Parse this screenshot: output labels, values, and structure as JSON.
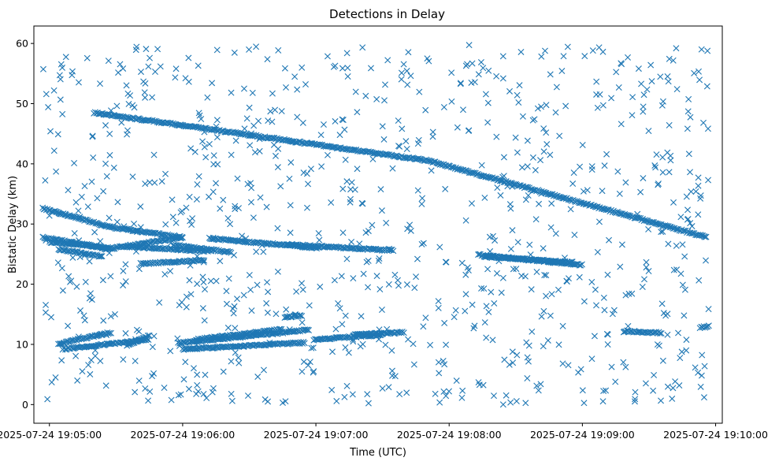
{
  "chart_data": {
    "type": "scatter",
    "title": "Detections in Delay",
    "xlabel": "Time (UTC)",
    "ylabel": "Bistatic Delay (km)",
    "x_time_start": "2025-07-24 19:04:53",
    "x_time_end": "2025-07-24 19:10:03",
    "xlim_seconds": [
      -7,
      303
    ],
    "ylim": [
      -3.1,
      62.9
    ],
    "x_ticks": [
      {
        "label": "2025-07-24 19:05:00",
        "t": 0
      },
      {
        "label": "2025-07-24 19:06:00",
        "t": 60
      },
      {
        "label": "2025-07-24 19:07:00",
        "t": 120
      },
      {
        "label": "2025-07-24 19:08:00",
        "t": 180
      },
      {
        "label": "2025-07-24 19:09:00",
        "t": 240
      },
      {
        "label": "2025-07-24 19:10:00",
        "t": 300
      }
    ],
    "y_ticks": [
      0,
      10,
      20,
      30,
      40,
      50,
      60
    ],
    "marker": "x",
    "color": "#1f77b4",
    "grid": false,
    "legend": "none",
    "tracks": [
      {
        "t_start": 20,
        "t_end": 171,
        "y_start": 48.5,
        "y_end": 40.5
      },
      {
        "t_start": 171,
        "t_end": 296,
        "y_start": 40.5,
        "y_end": 27.8
      },
      {
        "t_start": -3,
        "t_end": 27,
        "y_start": 32.6,
        "y_end": 29.5
      },
      {
        "t_start": 27,
        "t_end": 60,
        "y_start": 29.5,
        "y_end": 27.8
      },
      {
        "t_start": 60,
        "t_end": 25.5,
        "y_start": 27.8,
        "y_end": 25.8
      },
      {
        "t_start": -3,
        "t_end": 25,
        "y_start": 27.8,
        "y_end": 26.0
      },
      {
        "t_start": 35,
        "t_end": 72,
        "y_start": 26.2,
        "y_end": 25.5
      },
      {
        "t_start": 0,
        "t_end": 28,
        "y_start": 27.0,
        "y_end": 26.0
      },
      {
        "t_start": 4,
        "t_end": 24,
        "y_start": 25.8,
        "y_end": 24.6
      },
      {
        "t_start": 56,
        "t_end": 82,
        "y_start": 26.5,
        "y_end": 25.3
      },
      {
        "t_start": 72,
        "t_end": 122,
        "y_start": 27.6,
        "y_end": 26.0
      },
      {
        "t_start": 107,
        "t_end": 155,
        "y_start": 26.6,
        "y_end": 25.6
      },
      {
        "t_start": 193,
        "t_end": 240,
        "y_start": 24.9,
        "y_end": 23.2
      },
      {
        "t_start": 196,
        "t_end": 236,
        "y_start": 24.6,
        "y_end": 23.6
      },
      {
        "t_start": 41,
        "t_end": 70,
        "y_start": 23.4,
        "y_end": 24.0
      },
      {
        "t_start": 4,
        "t_end": 28,
        "y_start": 10.1,
        "y_end": 12.0
      },
      {
        "t_start": 6,
        "t_end": 45,
        "y_start": 9.2,
        "y_end": 10.8
      },
      {
        "t_start": 35,
        "t_end": 45,
        "y_start": 9.8,
        "y_end": 11.5
      },
      {
        "t_start": 58,
        "t_end": 117,
        "y_start": 10.2,
        "y_end": 12.4
      },
      {
        "t_start": 60,
        "t_end": 115,
        "y_start": 9.2,
        "y_end": 10.3
      },
      {
        "t_start": 66,
        "t_end": 105,
        "y_start": 10.8,
        "y_end": 12.5
      },
      {
        "t_start": 106,
        "t_end": 114,
        "y_start": 14.5,
        "y_end": 14.8
      },
      {
        "t_start": 119,
        "t_end": 150,
        "y_start": 10.8,
        "y_end": 11.6
      },
      {
        "t_start": 137,
        "t_end": 160,
        "y_start": 11.6,
        "y_end": 12.0
      },
      {
        "t_start": 259,
        "t_end": 276,
        "y_start": 12.2,
        "y_end": 11.9
      },
      {
        "t_start": 293,
        "t_end": 297,
        "y_start": 12.8,
        "y_end": 13.0
      }
    ],
    "noise_points": {
      "count": 900,
      "y_range": [
        0,
        60
      ]
    }
  }
}
